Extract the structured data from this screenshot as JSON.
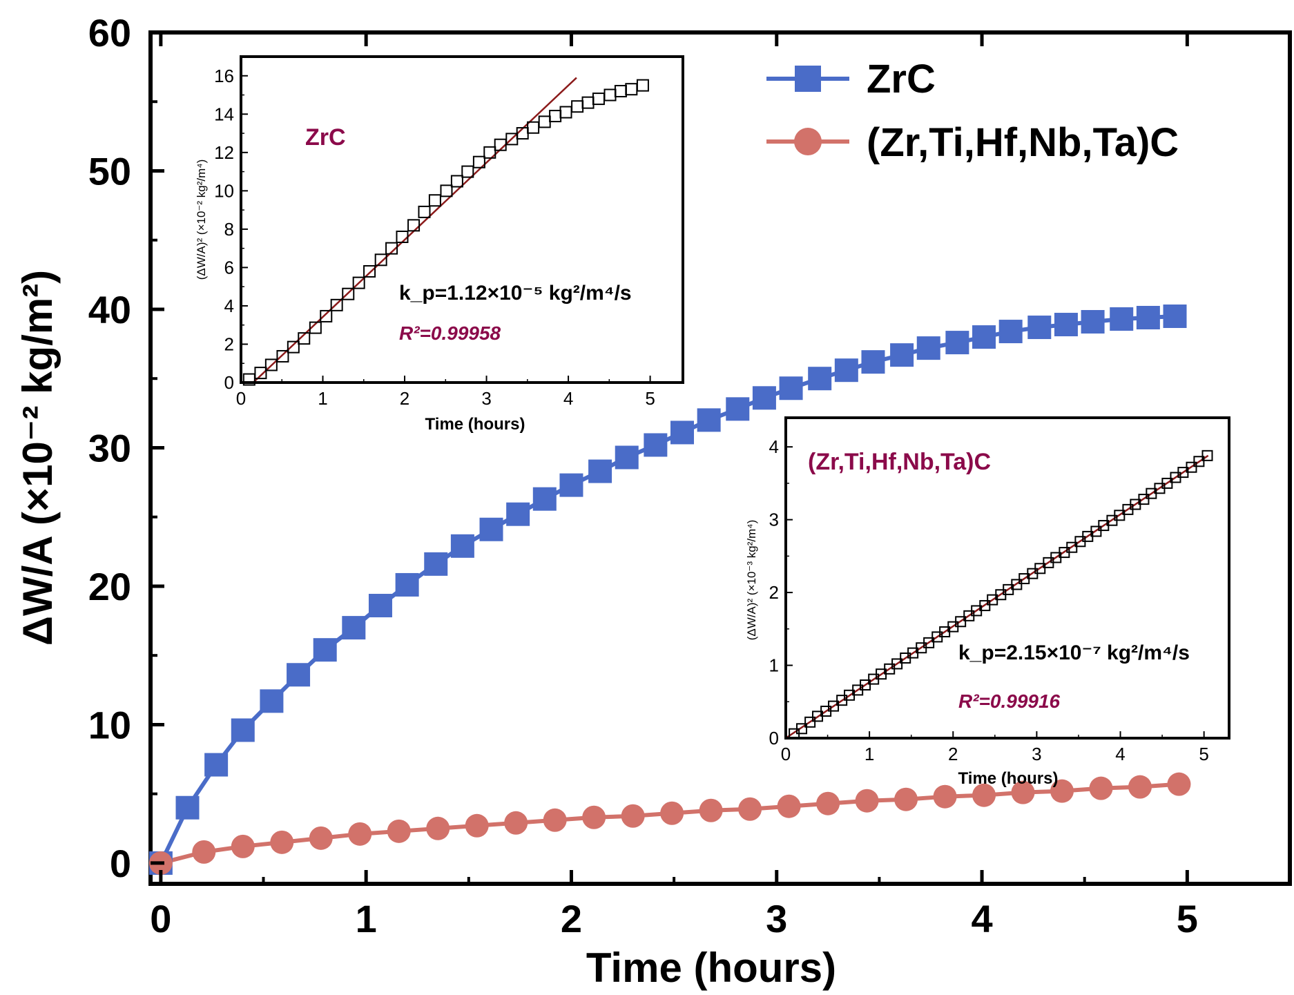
{
  "chart_data": [
    {
      "type": "line",
      "xlabel": "Time (hours)",
      "ylabel": "ΔW/A (×10⁻² kg/m²)",
      "xlim": [
        -0.05,
        5.5
      ],
      "ylim": [
        -1.5,
        60
      ],
      "xticks": [
        0,
        1,
        2,
        3,
        4,
        5
      ],
      "yticks": [
        0,
        10,
        20,
        30,
        40,
        50,
        60
      ],
      "xtick_labels": [
        "0",
        "1",
        "2",
        "3",
        "4",
        "5"
      ],
      "ytick_labels": [
        "0",
        "10",
        "20",
        "30",
        "40",
        "50",
        "60"
      ],
      "legend_position": "top-right",
      "series": [
        {
          "name": "ZrC",
          "marker": "square",
          "color": "#4a6cc8",
          "x": [
            0,
            0.13,
            0.27,
            0.4,
            0.54,
            0.67,
            0.8,
            0.94,
            1.07,
            1.2,
            1.34,
            1.47,
            1.61,
            1.74,
            1.87,
            2.0,
            2.14,
            2.27,
            2.41,
            2.54,
            2.67,
            2.81,
            2.94,
            3.07,
            3.21,
            3.34,
            3.47,
            3.61,
            3.74,
            3.88,
            4.01,
            4.14,
            4.28,
            4.41,
            4.54,
            4.68,
            4.81,
            4.94
          ],
          "y": [
            0,
            4.0,
            7.1,
            9.6,
            11.7,
            13.6,
            15.4,
            17.0,
            18.6,
            20.1,
            21.6,
            22.9,
            24.1,
            25.2,
            26.3,
            27.3,
            28.3,
            29.3,
            30.2,
            31.1,
            32.0,
            32.8,
            33.6,
            34.3,
            35.0,
            35.6,
            36.2,
            36.7,
            37.2,
            37.6,
            38.0,
            38.4,
            38.7,
            38.9,
            39.1,
            39.3,
            39.4,
            39.5
          ]
        },
        {
          "name": "(Zr,Ti,Hf,Nb,Ta)C",
          "marker": "circle",
          "color": "#d2726a",
          "x": [
            0,
            0.21,
            0.4,
            0.59,
            0.78,
            0.97,
            1.16,
            1.35,
            1.54,
            1.73,
            1.92,
            2.11,
            2.3,
            2.49,
            2.68,
            2.87,
            3.06,
            3.25,
            3.44,
            3.63,
            3.82,
            4.01,
            4.2,
            4.39,
            4.58,
            4.77,
            4.96
          ],
          "y": [
            0,
            0.8,
            1.2,
            1.5,
            1.8,
            2.1,
            2.3,
            2.5,
            2.7,
            2.9,
            3.1,
            3.3,
            3.4,
            3.6,
            3.8,
            3.9,
            4.1,
            4.3,
            4.5,
            4.6,
            4.8,
            4.9,
            5.1,
            5.2,
            5.4,
            5.5,
            5.7
          ]
        }
      ]
    },
    {
      "type": "scatter",
      "title": "ZrC",
      "xlabel": "Time (hours)",
      "ylabel": "(ΔW/A)² (×10⁻² kg²/m⁴)",
      "xlim": [
        0,
        5.4
      ],
      "ylim": [
        0,
        17
      ],
      "xticks": [
        0,
        1,
        2,
        3,
        4,
        5
      ],
      "yticks": [
        0,
        2,
        4,
        6,
        8,
        10,
        12,
        14,
        16
      ],
      "xtick_labels": [
        "0",
        "1",
        "2",
        "3",
        "4",
        "5"
      ],
      "ytick_labels": [
        "0",
        "2",
        "4",
        "6",
        "8",
        "10",
        "12",
        "14",
        "16"
      ],
      "annotation_kp": "k_p=1.12×10⁻⁵ kg²/m⁴/s",
      "annotation_r2": "R²=0.99958",
      "fit_line": {
        "x": [
          0.15,
          4.1
        ],
        "y": [
          0,
          15.9
        ],
        "color": "#8b1a1a"
      },
      "series": [
        {
          "marker": "open-square",
          "x": [
            0.1,
            0.24,
            0.37,
            0.51,
            0.64,
            0.77,
            0.91,
            1.04,
            1.17,
            1.31,
            1.44,
            1.57,
            1.71,
            1.84,
            1.97,
            2.11,
            2.24,
            2.37,
            2.51,
            2.64,
            2.77,
            2.91,
            3.04,
            3.17,
            3.31,
            3.44,
            3.57,
            3.71,
            3.84,
            3.97,
            4.11,
            4.24,
            4.37,
            4.51,
            4.64,
            4.77,
            4.91
          ],
          "y": [
            0.16,
            0.5,
            0.92,
            1.37,
            1.85,
            2.3,
            2.86,
            3.46,
            4.04,
            4.62,
            5.2,
            5.8,
            6.4,
            7.0,
            7.6,
            8.2,
            8.9,
            9.5,
            10.0,
            10.5,
            11.0,
            11.5,
            12.0,
            12.4,
            12.7,
            13.0,
            13.3,
            13.6,
            13.9,
            14.1,
            14.4,
            14.6,
            14.8,
            15.0,
            15.2,
            15.3,
            15.5
          ]
        }
      ]
    },
    {
      "type": "scatter",
      "title": "(Zr,Ti,Hf,Nb,Ta)C",
      "xlabel": "Time (hours)",
      "ylabel": "(ΔW/A)² (×10⁻³ kg²/m⁴)",
      "xlim": [
        0,
        5.3
      ],
      "ylim": [
        0,
        4.4
      ],
      "xticks": [
        0,
        1,
        2,
        3,
        4,
        5
      ],
      "yticks": [
        0,
        1,
        2,
        3,
        4
      ],
      "xtick_labels": [
        "0",
        "1",
        "2",
        "3",
        "4",
        "5"
      ],
      "ytick_labels": [
        "0",
        "1",
        "2",
        "3",
        "4"
      ],
      "annotation_kp": "k_p=2.15×10⁻⁷ kg²/m⁴/s",
      "annotation_r2": "R²=0.99916",
      "fit_line": {
        "x": [
          0,
          5.05
        ],
        "y": [
          0,
          3.88
        ],
        "color": "#8b1a1a"
      },
      "series": [
        {
          "marker": "open-square",
          "x": [
            0.1,
            0.19,
            0.29,
            0.38,
            0.48,
            0.57,
            0.67,
            0.76,
            0.86,
            0.95,
            1.05,
            1.14,
            1.24,
            1.33,
            1.43,
            1.52,
            1.62,
            1.71,
            1.81,
            1.9,
            2.0,
            2.09,
            2.19,
            2.28,
            2.38,
            2.47,
            2.57,
            2.66,
            2.76,
            2.85,
            2.95,
            3.04,
            3.14,
            3.23,
            3.33,
            3.42,
            3.52,
            3.61,
            3.71,
            3.8,
            3.9,
            3.99,
            4.09,
            4.18,
            4.28,
            4.37,
            4.47,
            4.56,
            4.66,
            4.75,
            4.85,
            4.94,
            5.04
          ],
          "y": [
            0.06,
            0.13,
            0.22,
            0.3,
            0.37,
            0.44,
            0.52,
            0.59,
            0.66,
            0.73,
            0.81,
            0.88,
            0.95,
            1.02,
            1.1,
            1.17,
            1.24,
            1.31,
            1.39,
            1.46,
            1.53,
            1.6,
            1.68,
            1.75,
            1.82,
            1.9,
            1.97,
            2.04,
            2.11,
            2.19,
            2.26,
            2.33,
            2.41,
            2.48,
            2.55,
            2.62,
            2.7,
            2.77,
            2.84,
            2.92,
            2.99,
            3.06,
            3.14,
            3.21,
            3.28,
            3.36,
            3.43,
            3.5,
            3.58,
            3.65,
            3.72,
            3.8,
            3.88
          ]
        }
      ]
    }
  ]
}
